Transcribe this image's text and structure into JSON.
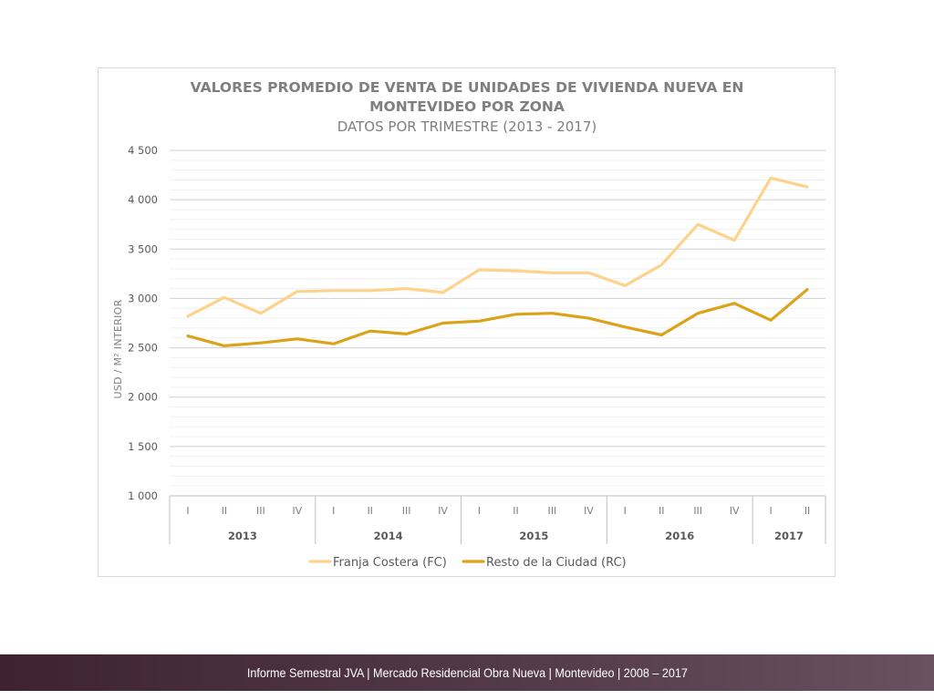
{
  "chart_data": {
    "type": "line",
    "title": "VALORES PROMEDIO DE VENTA DE UNIDADES DE VIVIENDA NUEVA EN MONTEVIDEO POR ZONA",
    "title_lines": [
      "VALORES PROMEDIO DE VENTA DE UNIDADES DE VIVIENDA NUEVA EN",
      "MONTEVIDEO POR ZONA"
    ],
    "subtitle": "DATOS POR TRIMESTRE (2013 - 2017)",
    "ylabel": "USD / M² INTERIOR",
    "xlabel": "",
    "ylim": [
      1000,
      4500
    ],
    "yticks": [
      1000,
      1500,
      2000,
      2500,
      3000,
      3500,
      4000,
      4500
    ],
    "ytick_labels": [
      "1 000",
      "1 500",
      "2 000",
      "2 500",
      "3 000",
      "3 500",
      "4 000",
      "4 500"
    ],
    "minor_grid_step": 100,
    "grid": true,
    "legend_position": "bottom",
    "categories": [
      "I",
      "II",
      "III",
      "IV",
      "I",
      "II",
      "III",
      "IV",
      "I",
      "II",
      "III",
      "IV",
      "I",
      "II",
      "III",
      "IV",
      "I",
      "II"
    ],
    "year_groups": [
      {
        "label": "2013",
        "count": 4
      },
      {
        "label": "2014",
        "count": 4
      },
      {
        "label": "2015",
        "count": 4
      },
      {
        "label": "2016",
        "count": 4
      },
      {
        "label": "2017",
        "count": 2
      }
    ],
    "series": [
      {
        "name": "Franja Costera (FC)",
        "color": "#fdd28a",
        "values": [
          2820,
          3010,
          2850,
          3070,
          3080,
          3080,
          3100,
          3060,
          3290,
          3280,
          3260,
          3260,
          3130,
          3340,
          3750,
          3590,
          4220,
          4130
        ]
      },
      {
        "name": "Resto de la Ciudad (RC)",
        "color": "#dba31a",
        "values": [
          2620,
          2520,
          2550,
          2590,
          2540,
          2670,
          2640,
          2750,
          2770,
          2840,
          2850,
          2800,
          2710,
          2630,
          2850,
          2950,
          2780,
          3090
        ]
      }
    ]
  },
  "footer": {
    "text": "Informe Semestral JVA | Mercado Residencial Obra Nueva | Montevideo | 2008 – 2017"
  }
}
